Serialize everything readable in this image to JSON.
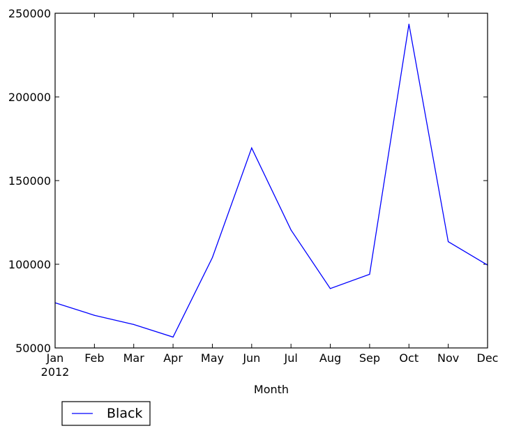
{
  "chart_data": {
    "type": "line",
    "x": [
      "Jan",
      "Feb",
      "Mar",
      "Apr",
      "May",
      "Jun",
      "Jul",
      "Aug",
      "Sep",
      "Oct",
      "Nov",
      "Dec"
    ],
    "x_sub_label": "2012",
    "xlabel": "Month",
    "ylabel": "",
    "ylim": [
      50000,
      250000
    ],
    "yticks": [
      "50000",
      "100000",
      "150000",
      "200000",
      "250000"
    ],
    "grid": false,
    "legend_position": "below-left",
    "series": [
      {
        "name": "Black",
        "color": "#0000ff",
        "values": [
          77000,
          69500,
          64000,
          56500,
          104000,
          169500,
          120500,
          85500,
          94000,
          243500,
          113500,
          99500
        ]
      }
    ]
  }
}
